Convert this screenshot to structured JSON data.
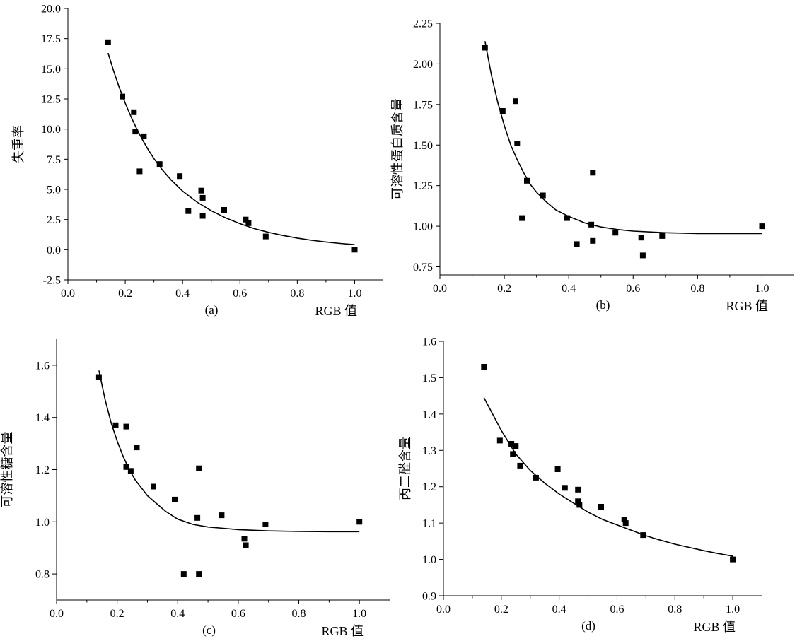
{
  "chart_data": [
    {
      "type": "scatter",
      "panel_label": "(a)",
      "xlabel": "RGB 值",
      "ylabel": "失重率",
      "xlim": [
        0.0,
        1.1
      ],
      "ylim": [
        -2.5,
        20.0
      ],
      "x_ticks": [
        "0.0",
        "0.2",
        "0.4",
        "0.6",
        "0.8",
        "1.0"
      ],
      "y_ticks": [
        "-2.5",
        "0.0",
        "2.5",
        "5.0",
        "7.5",
        "10.0",
        "12.5",
        "15.0",
        "17.5",
        "20.0"
      ],
      "points": {
        "x": [
          0.14,
          0.19,
          0.23,
          0.235,
          0.25,
          0.265,
          0.32,
          0.39,
          0.42,
          0.465,
          0.47,
          0.47,
          0.545,
          0.62,
          0.63,
          0.69,
          1.0
        ],
        "y": [
          17.2,
          12.7,
          11.4,
          9.8,
          6.5,
          9.4,
          7.1,
          6.1,
          3.2,
          4.9,
          4.3,
          2.8,
          3.3,
          2.5,
          2.2,
          1.1,
          0.0
        ]
      },
      "fit": {
        "x": [
          0.14,
          0.16,
          0.18,
          0.2,
          0.22,
          0.24,
          0.26,
          0.28,
          0.3,
          0.33,
          0.36,
          0.4,
          0.45,
          0.5,
          0.55,
          0.6,
          0.65,
          0.7,
          0.75,
          0.8,
          0.85,
          0.9,
          0.95,
          1.0
        ],
        "y": [
          16.3,
          14.77,
          13.39,
          12.15,
          11.03,
          10.02,
          9.12,
          8.3,
          7.56,
          6.6,
          5.78,
          4.86,
          3.95,
          3.23,
          2.64,
          2.16,
          1.75,
          1.44,
          1.18,
          0.96,
          0.78,
          0.64,
          0.52,
          0.42
        ]
      }
    },
    {
      "type": "scatter",
      "panel_label": "(b)",
      "xlabel": "RGB 值",
      "ylabel": "可溶性蛋白质含量",
      "xlim": [
        0.0,
        1.1
      ],
      "ylim": [
        0.7,
        2.25
      ],
      "x_ticks": [
        "0.0",
        "0.2",
        "0.4",
        "0.6",
        "0.8",
        "1.0"
      ],
      "y_ticks": [
        "0.75",
        "1.00",
        "1.25",
        "1.50",
        "1.75",
        "2.00",
        "2.25"
      ],
      "points": {
        "x": [
          0.14,
          0.195,
          0.235,
          0.24,
          0.255,
          0.27,
          0.32,
          0.395,
          0.425,
          0.47,
          0.475,
          0.475,
          0.545,
          0.625,
          0.63,
          0.69,
          1.0
        ],
        "y": [
          2.1,
          1.71,
          1.77,
          1.51,
          1.05,
          1.28,
          1.19,
          1.05,
          0.89,
          1.01,
          1.33,
          0.91,
          0.96,
          0.93,
          0.82,
          0.94,
          1.0
        ]
      },
      "fit": {
        "x": [
          0.14,
          0.16,
          0.18,
          0.2,
          0.22,
          0.24,
          0.26,
          0.28,
          0.3,
          0.33,
          0.36,
          0.4,
          0.45,
          0.5,
          0.55,
          0.6,
          0.7,
          0.8,
          0.9,
          1.0
        ],
        "y": [
          2.14,
          1.93,
          1.76,
          1.62,
          1.5,
          1.41,
          1.33,
          1.26,
          1.21,
          1.15,
          1.1,
          1.06,
          1.02,
          0.995,
          0.98,
          0.97,
          0.96,
          0.955,
          0.955,
          0.955
        ]
      }
    },
    {
      "type": "scatter",
      "panel_label": "(c)",
      "xlabel": "RGB 值",
      "ylabel": "可溶性糖含量",
      "xlim": [
        0.0,
        1.1
      ],
      "ylim": [
        0.7,
        1.7
      ],
      "x_ticks": [
        "0.0",
        "0.2",
        "0.4",
        "0.6",
        "0.8",
        "1.0"
      ],
      "y_ticks": [
        "0.8",
        "1.0",
        "1.2",
        "1.4",
        "1.6"
      ],
      "points": {
        "x": [
          0.14,
          0.195,
          0.23,
          0.23,
          0.245,
          0.265,
          0.32,
          0.39,
          0.42,
          0.465,
          0.47,
          0.47,
          0.545,
          0.62,
          0.625,
          0.69,
          1.0
        ],
        "y": [
          1.555,
          1.37,
          1.365,
          1.21,
          1.195,
          1.285,
          1.135,
          1.085,
          0.8,
          1.015,
          1.205,
          0.8,
          1.025,
          0.935,
          0.91,
          0.99,
          1.0
        ]
      },
      "fit": {
        "x": [
          0.14,
          0.16,
          0.18,
          0.2,
          0.22,
          0.24,
          0.26,
          0.28,
          0.3,
          0.33,
          0.36,
          0.4,
          0.45,
          0.5,
          0.55,
          0.6,
          0.7,
          0.8,
          0.9,
          1.0
        ],
        "y": [
          1.58,
          1.47,
          1.38,
          1.31,
          1.25,
          1.2,
          1.16,
          1.13,
          1.1,
          1.07,
          1.04,
          1.01,
          0.99,
          0.98,
          0.975,
          0.97,
          0.965,
          0.963,
          0.962,
          0.962
        ]
      }
    },
    {
      "type": "scatter",
      "panel_label": "(d)",
      "xlabel": "RGB 值",
      "ylabel": "丙二醛含量",
      "xlim": [
        0.0,
        1.1
      ],
      "ylim": [
        0.9,
        1.6
      ],
      "x_ticks": [
        "0.0",
        "0.2",
        "0.4",
        "0.6",
        "0.8",
        "1.0"
      ],
      "y_ticks": [
        "0.9",
        "1.0",
        "1.1",
        "1.2",
        "1.3",
        "1.4",
        "1.5",
        "1.6"
      ],
      "points": {
        "x": [
          0.14,
          0.195,
          0.235,
          0.24,
          0.25,
          0.265,
          0.32,
          0.395,
          0.42,
          0.465,
          0.465,
          0.47,
          0.545,
          0.625,
          0.63,
          0.69,
          1.0
        ],
        "y": [
          1.53,
          1.327,
          1.318,
          1.29,
          1.312,
          1.258,
          1.225,
          1.248,
          1.197,
          1.192,
          1.16,
          1.15,
          1.145,
          1.11,
          1.1,
          1.067,
          1.0
        ]
      },
      "fit": {
        "x": [
          0.14,
          0.2,
          0.25,
          0.3,
          0.35,
          0.4,
          0.45,
          0.5,
          0.55,
          0.6,
          0.65,
          0.7,
          0.75,
          0.8,
          0.85,
          0.9,
          0.95,
          1.0
        ],
        "y": [
          1.445,
          1.355,
          1.29,
          1.245,
          1.21,
          1.18,
          1.155,
          1.13,
          1.11,
          1.095,
          1.08,
          1.065,
          1.053,
          1.042,
          1.033,
          1.024,
          1.016,
          1.009
        ]
      }
    }
  ]
}
